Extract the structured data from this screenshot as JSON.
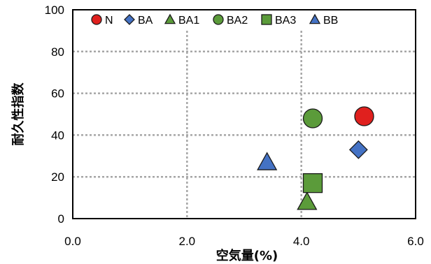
{
  "chart_data": {
    "type": "scatter",
    "xlabel": "空気量(%)",
    "ylabel": "耐久性指数",
    "xlim": [
      0,
      6
    ],
    "ylim": [
      0,
      100
    ],
    "x_ticks": [
      "0.0",
      "2.0",
      "4.0",
      "6.0"
    ],
    "y_ticks": [
      "0",
      "20",
      "40",
      "60",
      "80",
      "100"
    ],
    "grid": true,
    "legend_position": "top",
    "series": [
      {
        "name": "N",
        "marker": "circle",
        "color": "#E0201E",
        "points": [
          {
            "x": 5.1,
            "y": 49
          }
        ]
      },
      {
        "name": "BA",
        "marker": "diamond",
        "color": "#4472C4",
        "points": [
          {
            "x": 5.0,
            "y": 33
          }
        ]
      },
      {
        "name": "BA1",
        "marker": "triangle",
        "color": "#5B9B3A",
        "points": [
          {
            "x": 4.1,
            "y": 8
          }
        ]
      },
      {
        "name": "BA2",
        "marker": "circle",
        "color": "#5B9B3A",
        "points": [
          {
            "x": 4.2,
            "y": 48
          }
        ]
      },
      {
        "name": "BA3",
        "marker": "square",
        "color": "#5B9B3A",
        "points": [
          {
            "x": 4.2,
            "y": 17
          }
        ]
      },
      {
        "name": "BB",
        "marker": "triangle",
        "color": "#4472C4",
        "points": [
          {
            "x": 3.4,
            "y": 27
          }
        ]
      }
    ]
  }
}
